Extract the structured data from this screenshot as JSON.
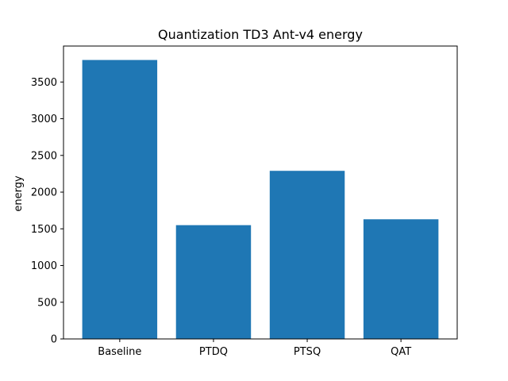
{
  "chart_data": {
    "type": "bar",
    "title": "Quantization TD3 Ant-v4 energy",
    "xlabel": "",
    "ylabel": "energy",
    "categories": [
      "Baseline",
      "PTDQ",
      "PTSQ",
      "QAT"
    ],
    "values": [
      3800,
      1550,
      2290,
      1630
    ],
    "ylim": [
      0,
      3990
    ],
    "yticks": [
      0,
      500,
      1000,
      1500,
      2000,
      2500,
      3000,
      3500
    ],
    "bar_color": "#1f77b4",
    "grid": false,
    "legend": "none"
  }
}
